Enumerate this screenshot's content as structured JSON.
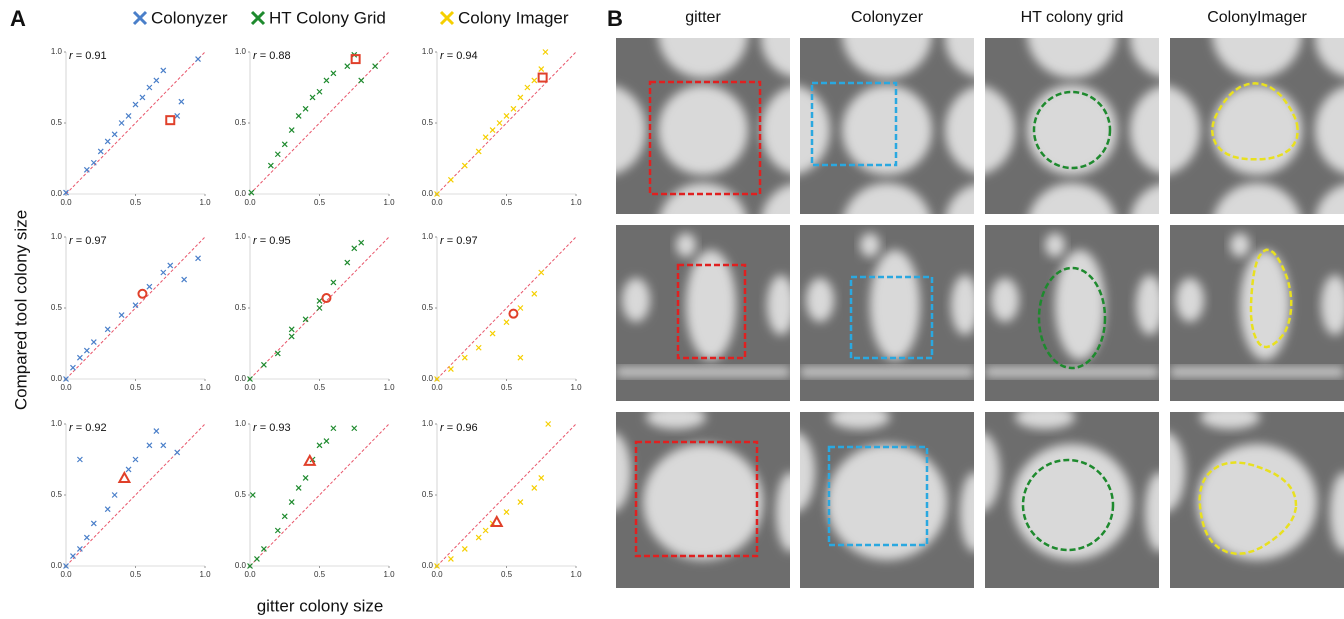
{
  "panel_a": {
    "label": "A",
    "y_label": "Compared tool colony size",
    "x_label": "gitter colony size",
    "legend": [
      {
        "name": "Colonyzer",
        "color": "#4a7fc9"
      },
      {
        "name": "HT Colony Grid",
        "color": "#1e8a2e"
      },
      {
        "name": "Colony Imager",
        "color": "#f5cf00"
      }
    ]
  },
  "panel_b": {
    "label": "B",
    "columns": [
      "gitter",
      "Colonyzer",
      "HT colony grid",
      "ColonyImager"
    ]
  },
  "chart_data": [
    {
      "type": "scatter",
      "annotation": "r = 0.91",
      "xlim": [
        0,
        1
      ],
      "ylim": [
        0,
        1
      ],
      "xticks": [
        {
          "value": 0,
          "label": "0.0"
        },
        {
          "value": 0.5,
          "label": "0.5"
        },
        {
          "value": 1,
          "label": "1.0"
        }
      ],
      "yticks": [
        {
          "value": 0,
          "label": "0.0"
        },
        {
          "value": 0.5,
          "label": "0.5"
        },
        {
          "value": 1,
          "label": "1.0"
        }
      ],
      "series": [
        {
          "color": "#4a7fc9",
          "x": [
            0,
            0.15,
            0.2,
            0.25,
            0.3,
            0.35,
            0.4,
            0.45,
            0.5,
            0.55,
            0.6,
            0.65,
            0.7,
            0.8,
            0.83,
            0.95
          ],
          "values": [
            0.01,
            0.17,
            0.22,
            0.3,
            0.37,
            0.42,
            0.5,
            0.55,
            0.63,
            0.68,
            0.75,
            0.8,
            0.87,
            0.55,
            0.65,
            0.95
          ]
        }
      ],
      "highlight": {
        "x": 0.75,
        "y": 0.52,
        "marker": "square",
        "color": "#e0402a"
      }
    },
    {
      "type": "scatter",
      "annotation": "r = 0.88",
      "xlim": [
        0,
        1
      ],
      "ylim": [
        0,
        1
      ],
      "xticks": [
        {
          "value": 0,
          "label": "0.0"
        },
        {
          "value": 0.5,
          "label": "0.5"
        },
        {
          "value": 1,
          "label": "1.0"
        }
      ],
      "yticks": [
        {
          "value": 0,
          "label": "0.0"
        },
        {
          "value": 0.5,
          "label": "0.5"
        },
        {
          "value": 1,
          "label": "1.0"
        }
      ],
      "series": [
        {
          "color": "#1e8a2e",
          "x": [
            0.01,
            0.15,
            0.2,
            0.25,
            0.3,
            0.35,
            0.4,
            0.45,
            0.5,
            0.55,
            0.6,
            0.7,
            0.75,
            0.8,
            0.9
          ],
          "values": [
            0.01,
            0.2,
            0.28,
            0.35,
            0.45,
            0.55,
            0.6,
            0.68,
            0.72,
            0.8,
            0.85,
            0.9,
            0.98,
            0.8,
            0.9
          ]
        }
      ],
      "highlight": {
        "x": 0.76,
        "y": 0.95,
        "marker": "square",
        "color": "#e0402a"
      }
    },
    {
      "type": "scatter",
      "annotation": "r = 0.94",
      "xlim": [
        0,
        1
      ],
      "ylim": [
        0,
        1
      ],
      "xticks": [
        {
          "value": 0,
          "label": "0.0"
        },
        {
          "value": 0.5,
          "label": "0.5"
        },
        {
          "value": 1,
          "label": "1.0"
        }
      ],
      "yticks": [
        {
          "value": 0,
          "label": "0.0"
        },
        {
          "value": 0.5,
          "label": "0.5"
        },
        {
          "value": 1,
          "label": "1.0"
        }
      ],
      "series": [
        {
          "color": "#f5cf00",
          "x": [
            0,
            0.1,
            0.2,
            0.3,
            0.35,
            0.4,
            0.45,
            0.5,
            0.55,
            0.6,
            0.65,
            0.7,
            0.75,
            0.78
          ],
          "values": [
            0,
            0.1,
            0.2,
            0.3,
            0.4,
            0.45,
            0.5,
            0.55,
            0.6,
            0.68,
            0.75,
            0.8,
            0.88,
            1.0
          ]
        }
      ],
      "highlight": {
        "x": 0.76,
        "y": 0.82,
        "marker": "square",
        "color": "#e0402a"
      }
    },
    {
      "type": "scatter",
      "annotation": "r = 0.97",
      "xlim": [
        0,
        1
      ],
      "ylim": [
        0,
        1
      ],
      "xticks": [
        {
          "value": 0,
          "label": "0.0"
        },
        {
          "value": 0.5,
          "label": "0.5"
        },
        {
          "value": 1,
          "label": "1.0"
        }
      ],
      "yticks": [
        {
          "value": 0,
          "label": "0.0"
        },
        {
          "value": 0.5,
          "label": "0.5"
        },
        {
          "value": 1,
          "label": "1.0"
        }
      ],
      "series": [
        {
          "color": "#4a7fc9",
          "x": [
            0,
            0.05,
            0.1,
            0.15,
            0.2,
            0.3,
            0.4,
            0.5,
            0.6,
            0.7,
            0.75,
            0.85,
            0.95
          ],
          "values": [
            0,
            0.08,
            0.15,
            0.2,
            0.26,
            0.35,
            0.45,
            0.52,
            0.65,
            0.75,
            0.8,
            0.7,
            0.85
          ]
        }
      ],
      "highlight": {
        "x": 0.55,
        "y": 0.6,
        "marker": "circle",
        "color": "#e0402a"
      }
    },
    {
      "type": "scatter",
      "annotation": "r = 0.95",
      "xlim": [
        0,
        1
      ],
      "ylim": [
        0,
        1
      ],
      "xticks": [
        {
          "value": 0,
          "label": "0.0"
        },
        {
          "value": 0.5,
          "label": "0.5"
        },
        {
          "value": 1,
          "label": "1.0"
        }
      ],
      "yticks": [
        {
          "value": 0,
          "label": "0.0"
        },
        {
          "value": 0.5,
          "label": "0.5"
        },
        {
          "value": 1,
          "label": "1.0"
        }
      ],
      "series": [
        {
          "color": "#1e8a2e",
          "x": [
            0,
            0.1,
            0.2,
            0.3,
            0.4,
            0.5,
            0.6,
            0.7,
            0.75,
            0.8,
            0.3,
            0.5
          ],
          "values": [
            0,
            0.1,
            0.18,
            0.3,
            0.42,
            0.55,
            0.68,
            0.82,
            0.92,
            0.96,
            0.35,
            0.5
          ]
        }
      ],
      "highlight": {
        "x": 0.55,
        "y": 0.57,
        "marker": "circle",
        "color": "#e0402a"
      }
    },
    {
      "type": "scatter",
      "annotation": "r = 0.97",
      "xlim": [
        0,
        1
      ],
      "ylim": [
        0,
        1
      ],
      "xticks": [
        {
          "value": 0,
          "label": "0.0"
        },
        {
          "value": 0.5,
          "label": "0.5"
        },
        {
          "value": 1,
          "label": "1.0"
        }
      ],
      "yticks": [
        {
          "value": 0,
          "label": "0.0"
        },
        {
          "value": 0.5,
          "label": "0.5"
        },
        {
          "value": 1,
          "label": "1.0"
        }
      ],
      "series": [
        {
          "color": "#f5cf00",
          "x": [
            0,
            0.1,
            0.2,
            0.3,
            0.4,
            0.5,
            0.6,
            0.7,
            0.75,
            0.6
          ],
          "values": [
            0,
            0.07,
            0.15,
            0.22,
            0.32,
            0.4,
            0.5,
            0.6,
            0.75,
            0.15
          ]
        }
      ],
      "highlight": {
        "x": 0.55,
        "y": 0.46,
        "marker": "circle",
        "color": "#e0402a"
      }
    },
    {
      "type": "scatter",
      "annotation": "r = 0.92",
      "xlim": [
        0,
        1
      ],
      "ylim": [
        0,
        1
      ],
      "xticks": [
        {
          "value": 0,
          "label": "0.0"
        },
        {
          "value": 0.5,
          "label": "0.5"
        },
        {
          "value": 1,
          "label": "1.0"
        }
      ],
      "yticks": [
        {
          "value": 0,
          "label": "0.0"
        },
        {
          "value": 0.5,
          "label": "0.5"
        },
        {
          "value": 1,
          "label": "1.0"
        }
      ],
      "series": [
        {
          "color": "#4a7fc9",
          "x": [
            0,
            0.05,
            0.1,
            0.15,
            0.2,
            0.3,
            0.35,
            0.45,
            0.5,
            0.6,
            0.65,
            0.7,
            0.1,
            0.8
          ],
          "values": [
            0,
            0.07,
            0.12,
            0.2,
            0.3,
            0.4,
            0.5,
            0.68,
            0.75,
            0.85,
            0.95,
            0.85,
            0.75,
            0.8
          ]
        }
      ],
      "highlight": {
        "x": 0.42,
        "y": 0.62,
        "marker": "triangle",
        "color": "#e0402a"
      }
    },
    {
      "type": "scatter",
      "annotation": "r = 0.93",
      "xlim": [
        0,
        1
      ],
      "ylim": [
        0,
        1
      ],
      "xticks": [
        {
          "value": 0,
          "label": "0.0"
        },
        {
          "value": 0.5,
          "label": "0.5"
        },
        {
          "value": 1,
          "label": "1.0"
        }
      ],
      "yticks": [
        {
          "value": 0,
          "label": "0.0"
        },
        {
          "value": 0.5,
          "label": "0.5"
        },
        {
          "value": 1,
          "label": "1.0"
        }
      ],
      "series": [
        {
          "color": "#1e8a2e",
          "x": [
            0,
            0.05,
            0.1,
            0.2,
            0.25,
            0.3,
            0.35,
            0.4,
            0.45,
            0.5,
            0.55,
            0.6,
            0.75,
            0.02
          ],
          "values": [
            0,
            0.05,
            0.12,
            0.25,
            0.35,
            0.45,
            0.55,
            0.62,
            0.75,
            0.85,
            0.88,
            0.97,
            0.97,
            0.5
          ]
        }
      ],
      "highlight": {
        "x": 0.43,
        "y": 0.74,
        "marker": "triangle",
        "color": "#e0402a"
      }
    },
    {
      "type": "scatter",
      "annotation": "r = 0.96",
      "xlim": [
        0,
        1
      ],
      "ylim": [
        0,
        1
      ],
      "xticks": [
        {
          "value": 0,
          "label": "0.0"
        },
        {
          "value": 0.5,
          "label": "0.5"
        },
        {
          "value": 1,
          "label": "1.0"
        }
      ],
      "yticks": [
        {
          "value": 0,
          "label": "0.0"
        },
        {
          "value": 0.5,
          "label": "0.5"
        },
        {
          "value": 1,
          "label": "1.0"
        }
      ],
      "series": [
        {
          "color": "#f5cf00",
          "x": [
            0,
            0.1,
            0.2,
            0.3,
            0.35,
            0.4,
            0.5,
            0.6,
            0.7,
            0.75,
            0.8
          ],
          "values": [
            0,
            0.05,
            0.12,
            0.2,
            0.25,
            0.3,
            0.38,
            0.45,
            0.55,
            0.62,
            1.0
          ]
        }
      ],
      "highlight": {
        "x": 0.43,
        "y": 0.31,
        "marker": "triangle",
        "color": "#e0402a"
      }
    }
  ]
}
